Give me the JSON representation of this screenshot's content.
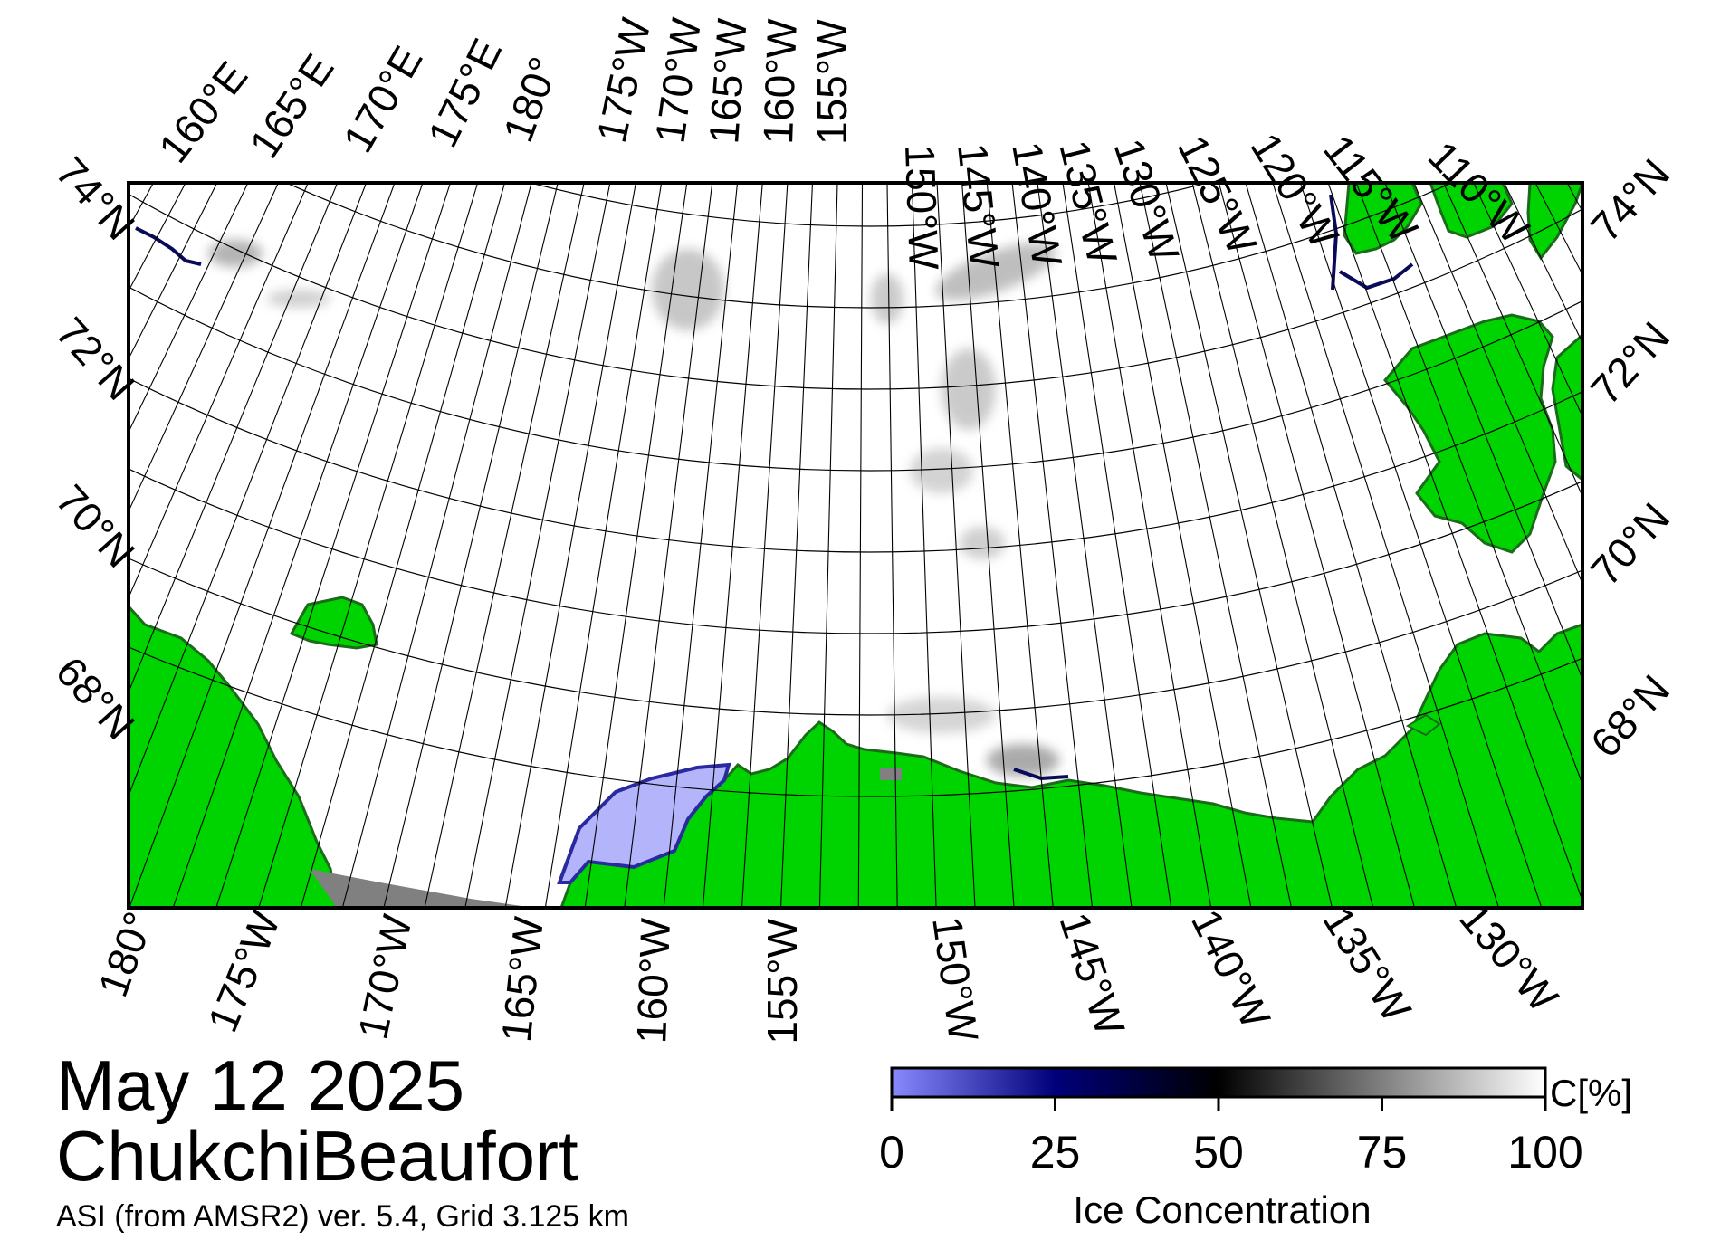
{
  "figure": {
    "date": "May 12 2025",
    "region": "ChukchiBeaufort",
    "product": "ASI (from AMSR2) ver. 5.4,  Grid 3.125 km"
  },
  "map": {
    "top_lon_labels": [
      "160°E",
      "165°E",
      "170°E",
      "175°E",
      "180°",
      "175°W",
      "170°W",
      "165°W",
      "160°W",
      "155°W",
      "150°W",
      "145°W",
      "140°W",
      "135°W",
      "130°W",
      "125°W",
      "120°W",
      "115°W",
      "110°W"
    ],
    "bottom_lon_labels": [
      "180°",
      "175°W",
      "170°W",
      "165°W",
      "160°W",
      "155°W",
      "150°W",
      "145°W",
      "140°W",
      "135°W",
      "130°W"
    ],
    "left_lat_labels": [
      "74°N",
      "72°N",
      "70°N",
      "68°N"
    ],
    "right_lat_labels": [
      "74°N",
      "72°N",
      "70°N",
      "68°N"
    ],
    "colors": {
      "land": "#00d400",
      "coast": "#1a6b1a",
      "open_water": "#ffffff",
      "no_data": "#808080",
      "low_ice": "#b4b4fa",
      "frame": "#000000"
    }
  },
  "colorbar": {
    "ticks": [
      "0",
      "25",
      "50",
      "75",
      "100"
    ],
    "unit_label": "C[%]",
    "title": "Ice Concentration",
    "stops": [
      {
        "value": 0,
        "color": "#8a8aff"
      },
      {
        "value": 25,
        "color": "#00007a"
      },
      {
        "value": 50,
        "color": "#000000"
      },
      {
        "value": 100,
        "color": "#ffffff"
      }
    ]
  }
}
